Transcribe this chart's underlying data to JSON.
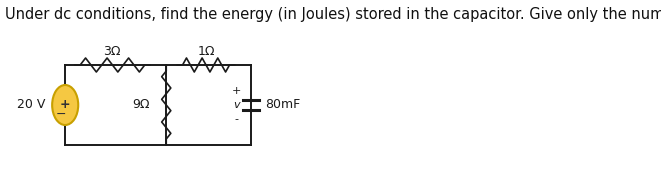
{
  "title": "Under dc conditions, find the energy (in Joules) stored in the capacitor. Give only the numeric value.",
  "title_fontsize": 10.5,
  "bg_color": "#ffffff",
  "voltage_source": "20 V",
  "r1_label": "3Ω",
  "r2_label": "1Ω",
  "r3_label": "9Ω",
  "cap_label": "80mF",
  "v_label": "v",
  "plus_label": "+",
  "minus_label": "-",
  "wire_color": "#1a1a1a",
  "component_color": "#1a1a1a",
  "source_fill": "#f5c842",
  "source_outline": "#c8a000"
}
